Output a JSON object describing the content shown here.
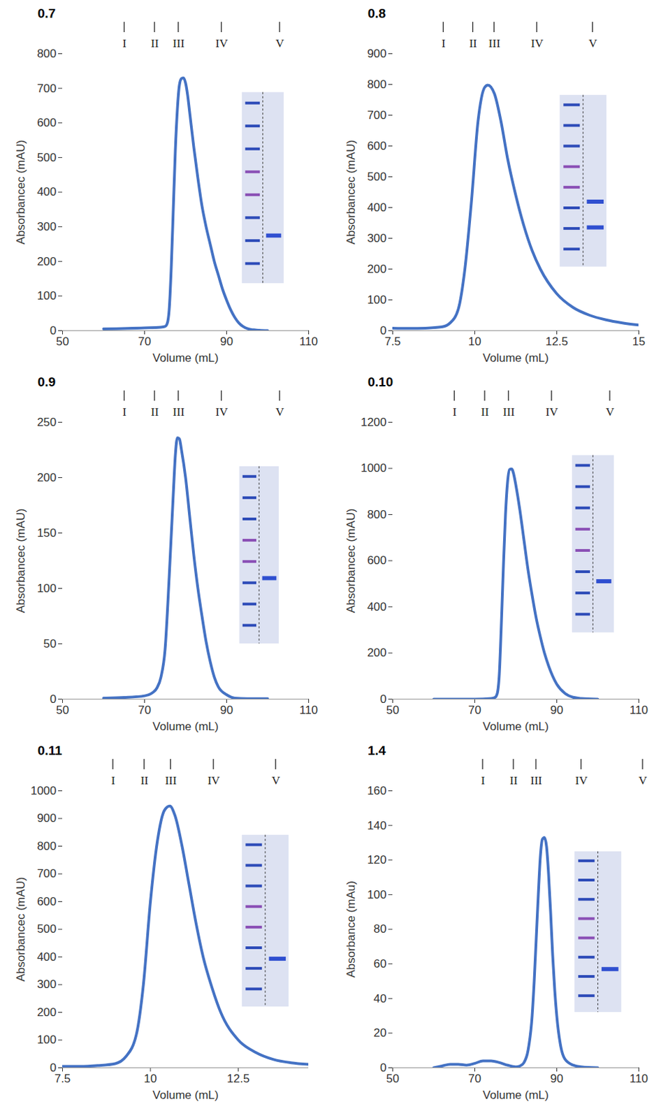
{
  "chart_data": [
    {
      "type": "line",
      "title": "0.7",
      "x_label": "Volume (mL)",
      "y_label": "Absorbancec (mAU)",
      "color": "#4472c4",
      "xlim": [
        50,
        110
      ],
      "xticks": [
        50,
        70,
        90,
        110
      ],
      "ylim": [
        0,
        800
      ],
      "yticks": [
        0,
        100,
        200,
        300,
        400,
        500,
        600,
        700,
        800
      ],
      "x": [
        60,
        70,
        74,
        75,
        75.5,
        76,
        76.5,
        77,
        77.5,
        78,
        78.5,
        79,
        79.5,
        80,
        80.5,
        81,
        82,
        83,
        84,
        85,
        86,
        87,
        88,
        89,
        90,
        91,
        92,
        93,
        94,
        95,
        96,
        97,
        98,
        100
      ],
      "values": [
        5,
        8,
        10,
        12,
        20,
        60,
        180,
        350,
        520,
        640,
        710,
        728,
        730,
        715,
        680,
        630,
        530,
        440,
        360,
        300,
        250,
        200,
        160,
        120,
        88,
        60,
        38,
        22,
        12,
        6,
        3,
        2,
        1,
        0
      ],
      "annotations": [
        {
          "text": "I",
          "x": 65.1
        },
        {
          "text": "II",
          "x": 72.5
        },
        {
          "text": "III",
          "x": 78.3
        },
        {
          "text": "IV",
          "x": 88.8
        },
        {
          "text": "V",
          "x": 103
        }
      ]
    },
    {
      "type": "line",
      "title": "0.8",
      "x_label": "Volume (mL)",
      "y_label": "Absorbancec (mAU)",
      "color": "#4472c4",
      "xlim": [
        7.5,
        15
      ],
      "xticks": [
        7.5,
        10,
        12.5,
        15
      ],
      "ylim": [
        0,
        900
      ],
      "yticks": [
        0,
        100,
        200,
        300,
        400,
        500,
        600,
        700,
        800,
        900
      ],
      "x": [
        7.5,
        8,
        8.5,
        9,
        9.25,
        9.5,
        9.7,
        9.9,
        10.1,
        10.3,
        10.4,
        10.6,
        10.8,
        11,
        11.25,
        11.5,
        11.75,
        12,
        12.5,
        13,
        13.5,
        14,
        14.5,
        15
      ],
      "values": [
        8,
        7,
        8,
        12,
        25,
        70,
        200,
        420,
        680,
        790,
        798,
        770,
        680,
        560,
        440,
        340,
        260,
        200,
        120,
        75,
        50,
        35,
        25,
        18
      ],
      "annotations": [
        {
          "text": "I",
          "x": 9.05
        },
        {
          "text": "II",
          "x": 9.95
        },
        {
          "text": "III",
          "x": 10.6
        },
        {
          "text": "IV",
          "x": 11.9
        },
        {
          "text": "V",
          "x": 13.6
        }
      ]
    },
    {
      "type": "line",
      "title": "0.9",
      "x_label": "Volume (mL)",
      "y_label": "Absorbancec (mAU)",
      "color": "#4472c4",
      "xlim": [
        50,
        110
      ],
      "xticks": [
        50,
        70,
        90,
        110
      ],
      "ylim": [
        0,
        250
      ],
      "yticks": [
        0,
        50,
        100,
        150,
        200,
        250
      ],
      "x": [
        60,
        65,
        70,
        72,
        73,
        74,
        75,
        76,
        77,
        77.5,
        78,
        78.5,
        79,
        80,
        81,
        82,
        83,
        84,
        85,
        86,
        87,
        88,
        90,
        92,
        95,
        100
      ],
      "values": [
        1,
        1.5,
        3,
        6,
        10,
        20,
        45,
        110,
        185,
        220,
        236,
        235,
        225,
        200,
        165,
        130,
        100,
        75,
        52,
        34,
        20,
        11,
        4,
        1,
        0.5,
        0.5
      ],
      "annotations": [
        {
          "text": "I",
          "x": 65.1
        },
        {
          "text": "II",
          "x": 72.5
        },
        {
          "text": "III",
          "x": 78.3
        },
        {
          "text": "IV",
          "x": 88.8
        },
        {
          "text": "V",
          "x": 103
        }
      ]
    },
    {
      "type": "line",
      "title": "0.10",
      "x_label": "Volume (mL)",
      "y_label": "Absorbancec (mAU)",
      "color": "#4472c4",
      "xlim": [
        50,
        110
      ],
      "xticks": [
        50,
        70,
        90,
        110
      ],
      "ylim": [
        0,
        1200
      ],
      "yticks": [
        0,
        200,
        400,
        600,
        800,
        1000,
        1200
      ],
      "x": [
        60,
        70,
        74,
        75,
        75.5,
        76,
        76.5,
        77,
        77.5,
        78,
        78.5,
        79,
        79.5,
        80,
        81,
        82,
        83,
        84,
        85,
        86,
        87,
        88,
        89,
        90,
        92,
        94,
        96,
        100
      ],
      "values": [
        0,
        0,
        3,
        8,
        25,
        110,
        330,
        580,
        800,
        940,
        995,
        998,
        975,
        930,
        820,
        690,
        560,
        450,
        350,
        270,
        200,
        145,
        100,
        65,
        25,
        8,
        3,
        0
      ],
      "annotations": [
        {
          "text": "I",
          "x": 65.1
        },
        {
          "text": "II",
          "x": 72.5
        },
        {
          "text": "III",
          "x": 78.3
        },
        {
          "text": "IV",
          "x": 88.8
        },
        {
          "text": "V",
          "x": 103
        }
      ]
    },
    {
      "type": "line",
      "title": "0.11",
      "x_label": "Volume (mL)",
      "y_label": "Absorbancec (mAU)",
      "color": "#4472c4",
      "xlim": [
        7.5,
        14.5
      ],
      "xticks": [
        7.5,
        10,
        12.5
      ],
      "ylim": [
        0,
        1000
      ],
      "yticks": [
        0,
        100,
        200,
        300,
        400,
        500,
        600,
        700,
        800,
        900,
        1000
      ],
      "x": [
        7.5,
        8,
        8.5,
        9,
        9.3,
        9.6,
        9.8,
        10,
        10.2,
        10.4,
        10.55,
        10.7,
        10.9,
        11.1,
        11.3,
        11.5,
        11.75,
        12,
        12.5,
        13,
        13.5,
        14,
        14.5
      ],
      "values": [
        5,
        5,
        8,
        15,
        40,
        120,
        300,
        600,
        820,
        930,
        945,
        910,
        800,
        660,
        520,
        400,
        290,
        200,
        100,
        55,
        30,
        18,
        12
      ],
      "annotations": [
        {
          "text": "I",
          "x": 8.94
        },
        {
          "text": "II",
          "x": 9.83
        },
        {
          "text": "III",
          "x": 10.58
        },
        {
          "text": "IV",
          "x": 11.8
        },
        {
          "text": "V",
          "x": 13.57
        }
      ]
    },
    {
      "type": "line",
      "title": "1.4",
      "x_label": "Volume (mL)",
      "y_label": "Absorbance (mAu)",
      "color": "#4472c4",
      "xlim": [
        50,
        110
      ],
      "xticks": [
        50,
        70,
        90,
        110
      ],
      "ylim": [
        0,
        160
      ],
      "yticks": [
        0,
        20,
        40,
        60,
        80,
        100,
        120,
        140,
        160
      ],
      "x": [
        60,
        62,
        64,
        66,
        68,
        70,
        72,
        74,
        76,
        78,
        80,
        81,
        82,
        83,
        84,
        84.5,
        85,
        85.5,
        86,
        86.5,
        87,
        87.5,
        88,
        88.5,
        89,
        89.5,
        90,
        91,
        92,
        94,
        96,
        100
      ],
      "values": [
        0,
        1,
        2,
        2,
        1.5,
        2.5,
        4,
        4,
        3,
        1.5,
        0.5,
        1,
        3,
        10,
        30,
        50,
        75,
        100,
        122,
        132,
        133,
        128,
        112,
        90,
        65,
        45,
        30,
        12,
        5,
        1.5,
        0.5,
        0
      ],
      "annotations": [
        {
          "text": "I",
          "x": 72
        },
        {
          "text": "II",
          "x": 79.5
        },
        {
          "text": "III",
          "x": 85
        },
        {
          "text": "IV",
          "x": 96
        },
        {
          "text": "V",
          "x": 111
        }
      ]
    }
  ]
}
